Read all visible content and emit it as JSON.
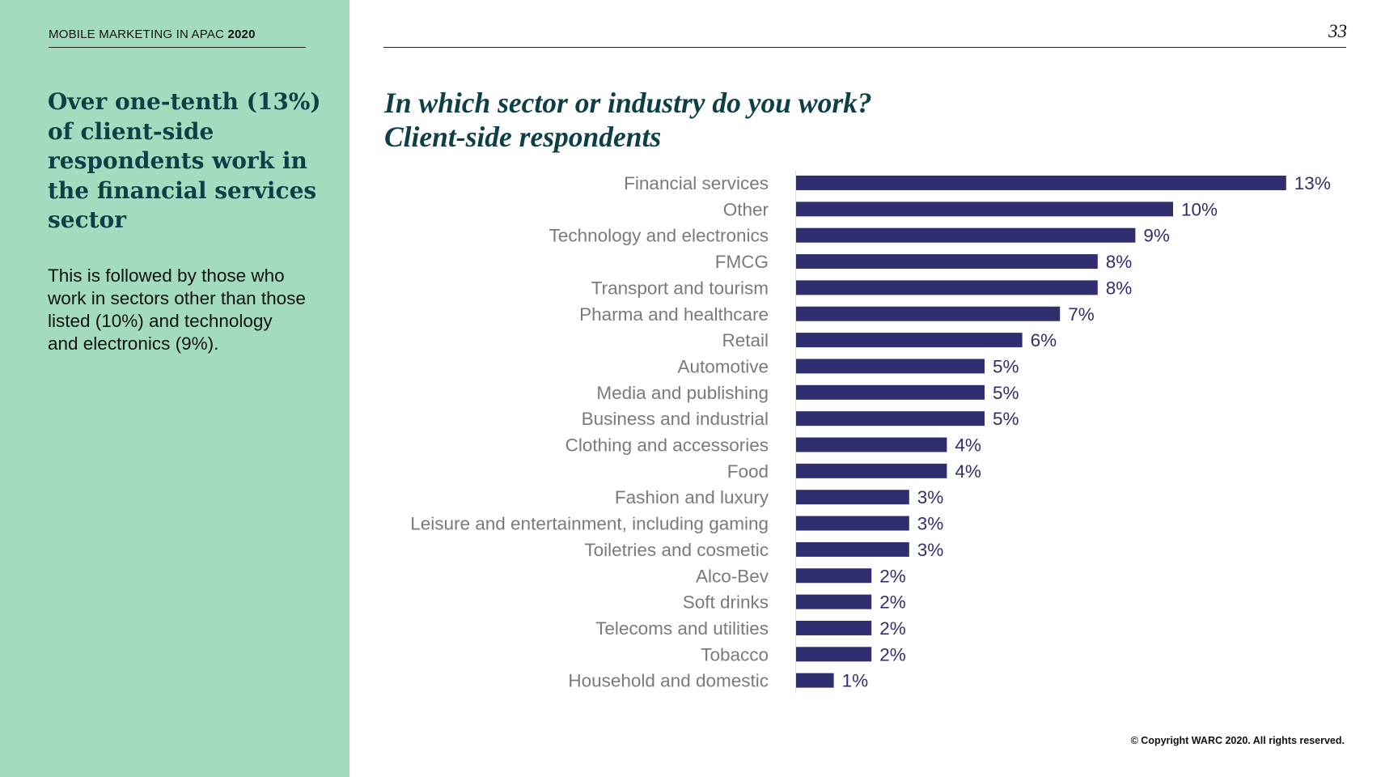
{
  "header": {
    "report_title": "MOBILE MARKETING IN APAC",
    "report_year": "2020",
    "page_number": "33"
  },
  "sidebar": {
    "headline": "Over one-tenth (13%) of client-side respondents work in the financial services sector",
    "body": "This is followed by those who work in sectors other than those listed (10%) and technology and electronics (9%)."
  },
  "chart_title_line1": "In which sector or industry do you work?",
  "chart_title_line2": "Client-side respondents",
  "chart_data": {
    "type": "bar",
    "orientation": "horizontal",
    "title": "In which sector or industry do you work? Client-side respondents",
    "xlabel": "",
    "ylabel": "",
    "xlim": [
      0,
      13
    ],
    "grid": false,
    "categories": [
      "Financial services",
      "Other",
      "Technology and electronics",
      "FMCG",
      "Transport and tourism",
      "Pharma and healthcare",
      "Retail",
      "Automotive",
      "Media and publishing",
      "Business and industrial",
      "Clothing and accessories",
      "Food",
      "Fashion and luxury",
      "Leisure and entertainment, including gaming",
      "Toiletries and cosmetic",
      "Alco-Bev",
      "Soft drinks",
      "Telecoms and utilities",
      "Tobacco",
      "Household and domestic"
    ],
    "values": [
      13,
      10,
      9,
      8,
      8,
      7,
      6,
      5,
      5,
      5,
      4,
      4,
      3,
      3,
      3,
      2,
      2,
      2,
      2,
      1
    ],
    "value_labels": [
      "13%",
      "10%",
      "9%",
      "8%",
      "8%",
      "7%",
      "6%",
      "5%",
      "5%",
      "5%",
      "4%",
      "4%",
      "3%",
      "3%",
      "3%",
      "2%",
      "2%",
      "2%",
      "2%",
      "1%"
    ],
    "bar_color": "#2f2f6f"
  },
  "footer": {
    "copyright": "© Copyright WARC 2020. All rights reserved."
  }
}
